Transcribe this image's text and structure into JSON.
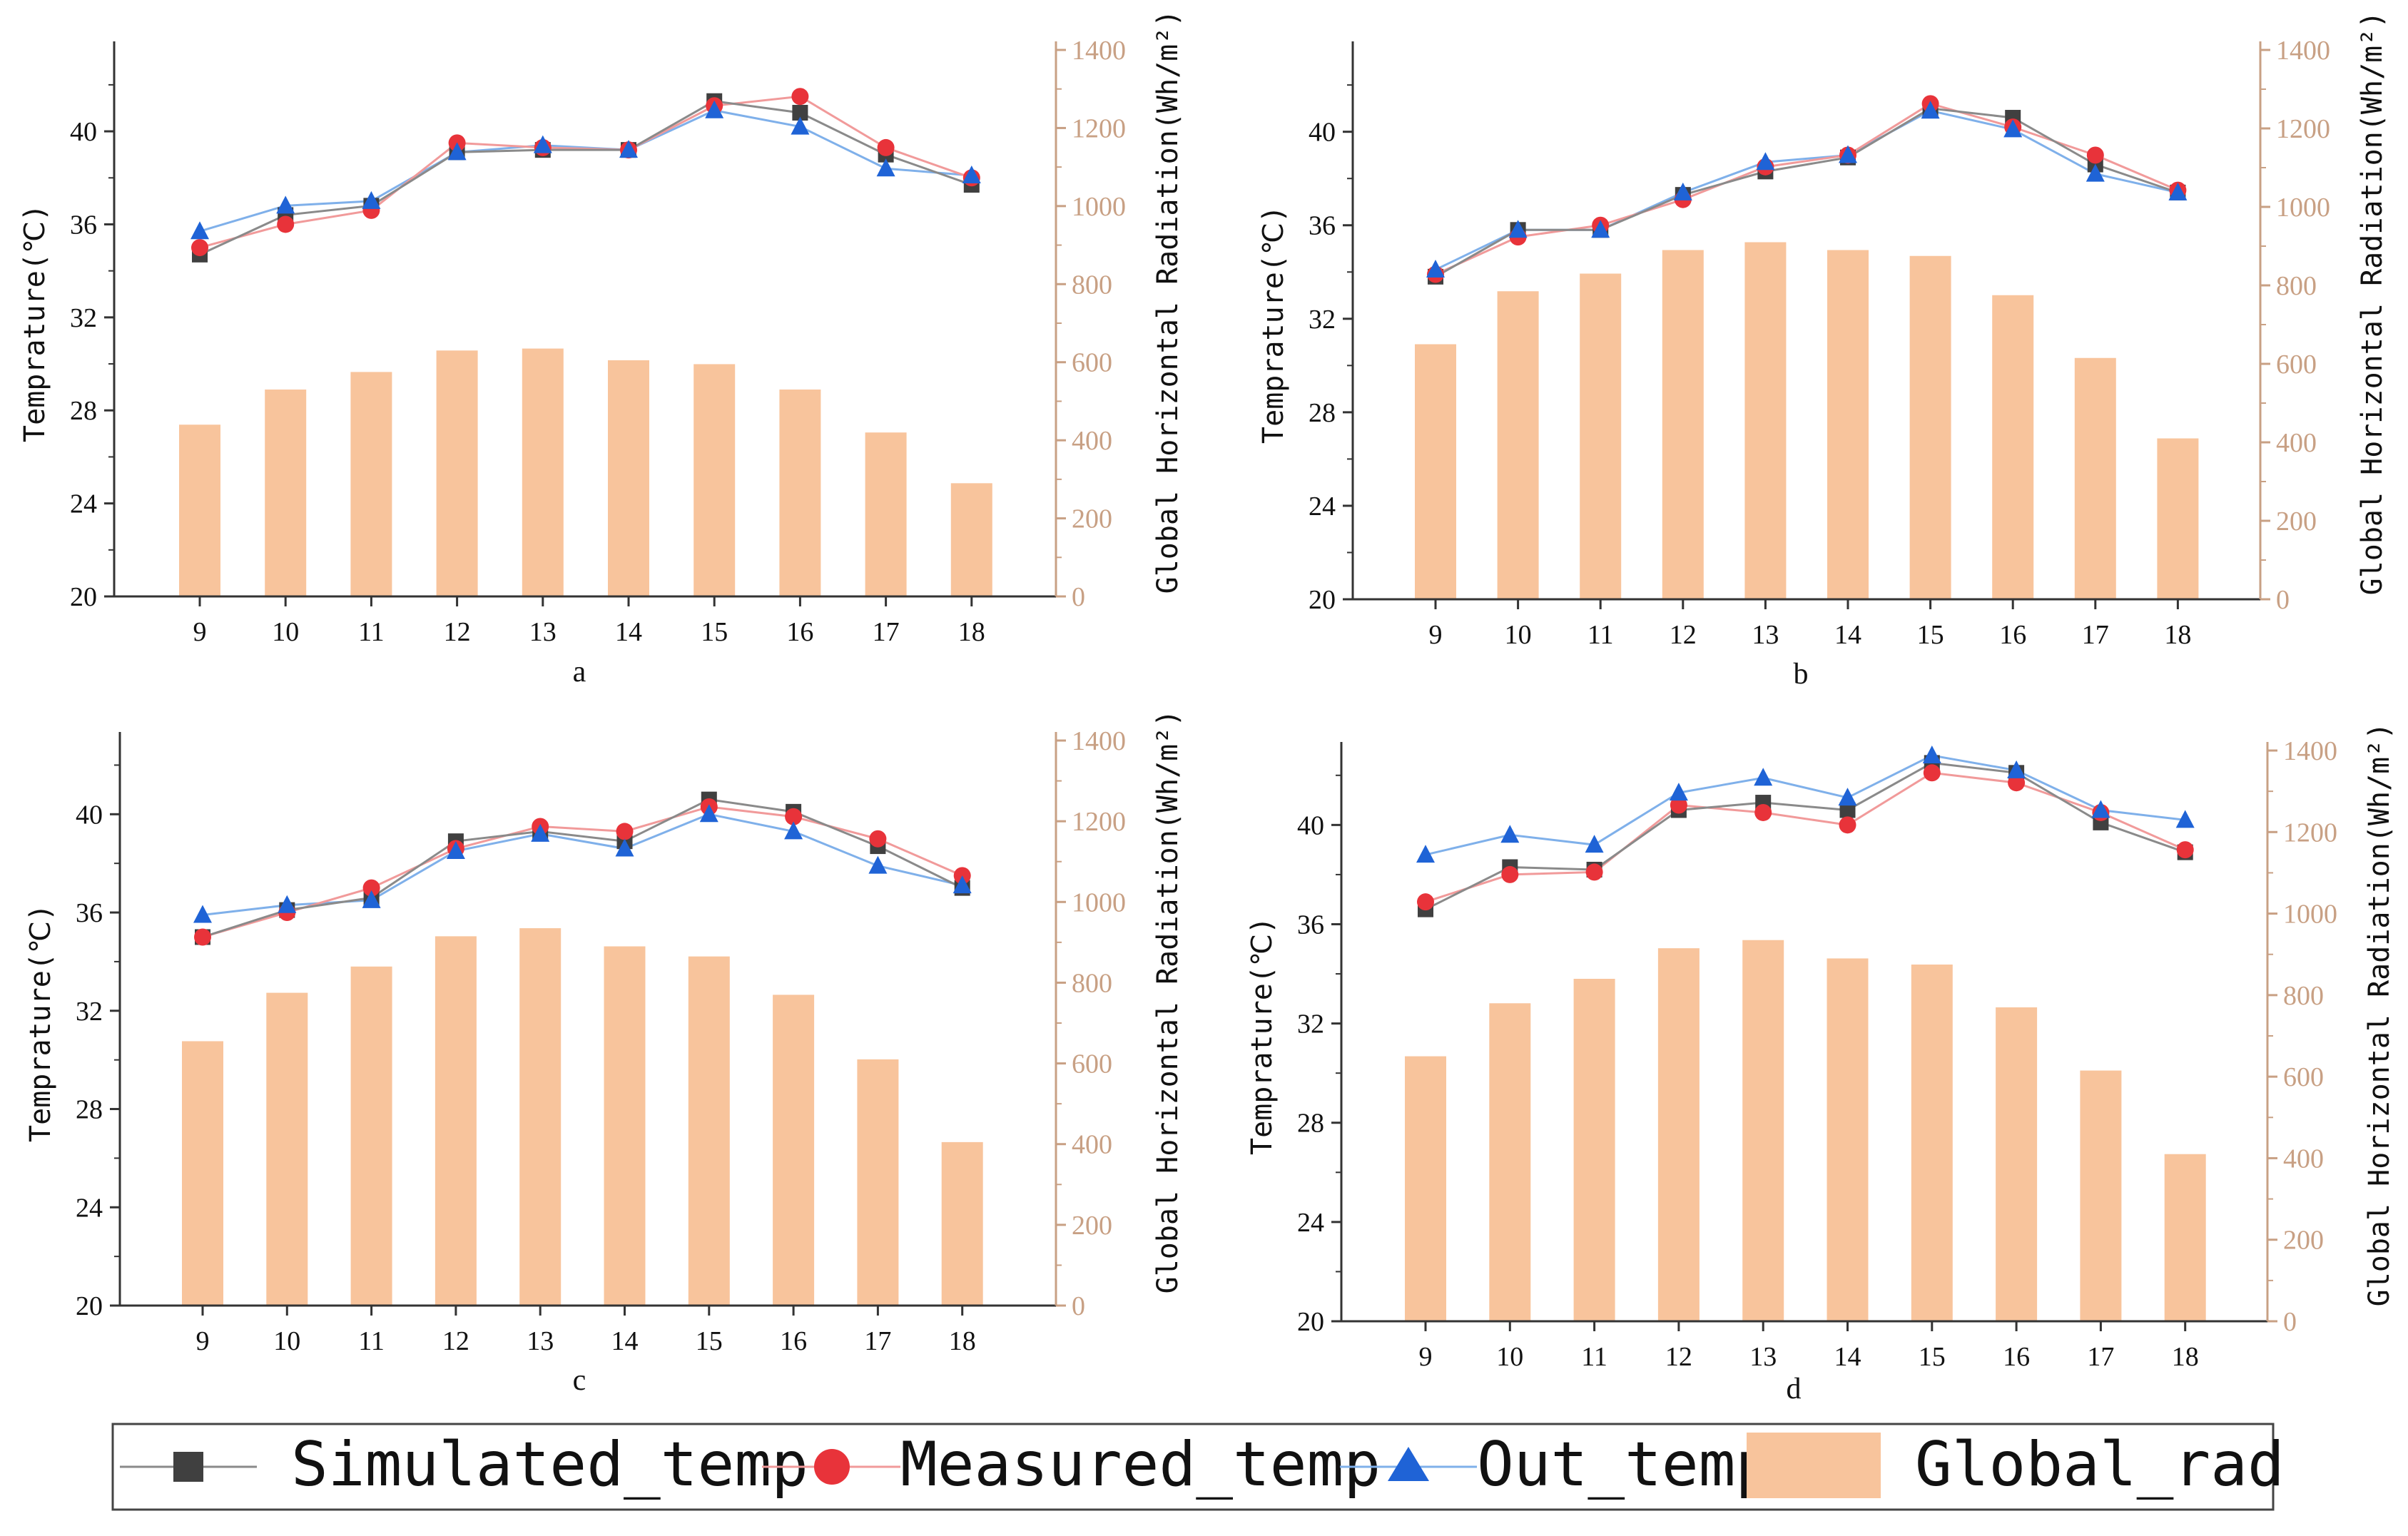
{
  "chart_data": {
    "type": "bar+line",
    "x_ticks": [
      "9",
      "10",
      "11",
      "12",
      "13",
      "14",
      "15",
      "16",
      "17",
      "18"
    ],
    "y_left_ticks": [
      "20",
      "24",
      "28",
      "32",
      "36",
      "40"
    ],
    "y_right_ticks": [
      "0",
      "200",
      "400",
      "600",
      "800",
      "1000",
      "1200",
      "1400"
    ],
    "ylabel_left": "Temprature(℃)",
    "ylabel_right": "Global Horizontal Radiation(Wh/m²)",
    "legend": {
      "position": "bottom",
      "entries": [
        "Simulated_temp",
        "Measured_temp",
        "Out_temp",
        "Global_rad"
      ]
    },
    "colors": {
      "simulated": "#404040",
      "measured": "#e8333a",
      "out": "#1f63d6",
      "out_line": "#7fb0ea",
      "measured_line": "#f19a9a",
      "simulated_line": "#8a8a8a",
      "bar": "#f8c49c",
      "right_axis": "#c8a084"
    },
    "panels": [
      {
        "label": "a",
        "x": [
          9,
          10,
          11,
          12,
          13,
          14,
          15,
          16,
          17,
          18
        ],
        "ylim_left": [
          20,
          43.5
        ],
        "ylim_right": [
          0,
          1400
        ],
        "series": [
          {
            "name": "Simulated_temp",
            "values": [
              34.7,
              36.4,
              36.8,
              39.1,
              39.2,
              39.2,
              41.3,
              40.8,
              39.0,
              37.7
            ]
          },
          {
            "name": "Measured_temp",
            "values": [
              35.0,
              36.0,
              36.6,
              39.5,
              39.3,
              39.2,
              41.1,
              41.5,
              39.3,
              38.0
            ]
          },
          {
            "name": "Out_temp",
            "values": [
              35.7,
              36.8,
              37.0,
              39.1,
              39.4,
              39.2,
              40.9,
              40.2,
              38.4,
              38.1
            ]
          },
          {
            "name": "Global_rad",
            "values": [
              440,
              530,
              575,
              630,
              635,
              605,
              595,
              530,
              420,
              290
            ]
          }
        ]
      },
      {
        "label": "b",
        "x": [
          9,
          10,
          11,
          12,
          13,
          14,
          15,
          16,
          17,
          18
        ],
        "ylim_left": [
          20,
          43.5
        ],
        "ylim_right": [
          0,
          1400
        ],
        "series": [
          {
            "name": "Simulated_temp",
            "values": [
              33.8,
              35.8,
              35.8,
              37.3,
              38.3,
              38.9,
              41.0,
              40.6,
              38.6,
              37.4
            ]
          },
          {
            "name": "Measured_temp",
            "values": [
              33.9,
              35.5,
              36.0,
              37.1,
              38.5,
              39.0,
              41.2,
              40.2,
              39.0,
              37.5
            ]
          },
          {
            "name": "Out_temp",
            "values": [
              34.1,
              35.8,
              35.8,
              37.4,
              38.7,
              39.0,
              40.9,
              40.1,
              38.2,
              37.4
            ]
          },
          {
            "name": "Global_rad",
            "values": [
              650,
              785,
              830,
              890,
              910,
              890,
              875,
              775,
              615,
              410
            ]
          }
        ]
      },
      {
        "label": "c",
        "x": [
          9,
          10,
          11,
          12,
          13,
          14,
          15,
          16,
          17,
          18
        ],
        "ylim_left": [
          20,
          43
        ],
        "ylim_right": [
          0,
          1400
        ],
        "series": [
          {
            "name": "Simulated_temp",
            "values": [
              35.0,
              36.1,
              36.6,
              38.9,
              39.3,
              38.9,
              40.6,
              40.1,
              38.7,
              37.0
            ]
          },
          {
            "name": "Measured_temp",
            "values": [
              35.0,
              36.0,
              37.0,
              38.6,
              39.5,
              39.3,
              40.3,
              39.9,
              39.0,
              37.5
            ]
          },
          {
            "name": "Out_temp",
            "values": [
              35.9,
              36.3,
              36.5,
              38.5,
              39.2,
              38.6,
              40.0,
              39.3,
              37.9,
              37.1
            ]
          },
          {
            "name": "Global_rad",
            "values": [
              655,
              775,
              840,
              915,
              935,
              890,
              865,
              770,
              610,
              405
            ]
          }
        ]
      },
      {
        "label": "d",
        "x": [
          9,
          10,
          11,
          12,
          13,
          14,
          15,
          16,
          17,
          18
        ],
        "ylim_left": [
          20,
          43
        ],
        "ylim_right": [
          0,
          1400
        ],
        "series": [
          {
            "name": "Simulated_temp",
            "values": [
              36.6,
              38.3,
              38.2,
              40.6,
              40.9,
              40.6,
              42.5,
              42.1,
              40.1,
              38.9
            ]
          },
          {
            "name": "Measured_temp",
            "values": [
              36.9,
              38.0,
              38.1,
              40.8,
              40.5,
              40.0,
              42.1,
              41.7,
              40.5,
              39.0
            ]
          },
          {
            "name": "Out_temp",
            "values": [
              38.8,
              39.6,
              39.2,
              41.3,
              41.9,
              41.1,
              42.8,
              42.2,
              40.6,
              40.2
            ]
          },
          {
            "name": "Global_rad",
            "values": [
              650,
              780,
              840,
              915,
              935,
              890,
              875,
              770,
              615,
              410
            ]
          }
        ]
      }
    ]
  }
}
